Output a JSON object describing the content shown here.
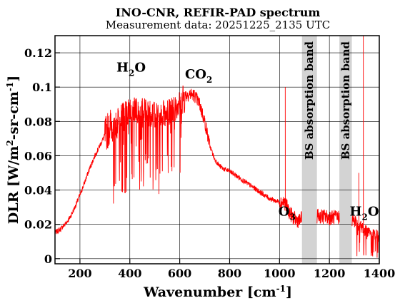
{
  "chart_data": {
    "type": "line",
    "title": "INO-CNR, REFIR-PAD spectrum",
    "subtitle": "Measurement data: 20251225_2135 UTC",
    "xlabel": "Wavenumber [cm-1]",
    "xlabel_base": "Wavenumber [cm",
    "xlabel_sup": "-1",
    "xlabel_close": "]",
    "ylabel": "DLR [W/m2-sr-cm-1]",
    "ylabel_parts": {
      "a": "DLR [W/m",
      "sup1": "2",
      "b": "-sr-cm",
      "sup2": "-1",
      "c": "]"
    },
    "xlim": [
      100,
      1400
    ],
    "ylim": [
      -0.003,
      0.13
    ],
    "x_ticks": [
      200,
      400,
      600,
      800,
      1000,
      1200,
      1400
    ],
    "y_ticks": [
      0,
      0.02,
      0.04,
      0.06,
      0.08,
      0.1,
      0.12
    ],
    "y_tick_labels": [
      "0",
      "0.02",
      "0.04",
      "0.06",
      "0.08",
      "0.1",
      "0.12"
    ],
    "grid": true,
    "line_color": "#ff0000",
    "band_color": "#d3d3d3",
    "series": [
      {
        "x": [
          100,
          120,
          140,
          160,
          180,
          200,
          220,
          240,
          260,
          280,
          300,
          320,
          340,
          360,
          380,
          400,
          420,
          440,
          460,
          480,
          500,
          520,
          540,
          560,
          580,
          600,
          620,
          640,
          660,
          680,
          700,
          720,
          740,
          760,
          780,
          800,
          820,
          840,
          860,
          880,
          900,
          920,
          940,
          960,
          980,
          1000,
          1020,
          1040,
          1060,
          1080,
          1100,
          1150,
          1200,
          1250,
          1300,
          1320,
          1340,
          1360,
          1380,
          1400
        ],
        "y": [
          0.015,
          0.017,
          0.02,
          0.024,
          0.03,
          0.037,
          0.045,
          0.053,
          0.06,
          0.066,
          0.072,
          0.077,
          0.081,
          0.085,
          0.088,
          0.089,
          0.09,
          0.09,
          0.089,
          0.088,
          0.087,
          0.087,
          0.088,
          0.089,
          0.091,
          0.093,
          0.095,
          0.096,
          0.095,
          0.09,
          0.08,
          0.066,
          0.058,
          0.054,
          0.052,
          0.051,
          0.049,
          0.047,
          0.045,
          0.043,
          0.041,
          0.039,
          0.037,
          0.035,
          0.034,
          0.033,
          0.033,
          0.027,
          0.023,
          0.022,
          0.025,
          0.025,
          0.024,
          0.024,
          0.023,
          0.02,
          0.018,
          0.016,
          0.015,
          0.015
        ]
      }
    ],
    "bands": [
      {
        "x0": 1090,
        "x1": 1150,
        "label": "BS absorption band"
      },
      {
        "x0": 1240,
        "x1": 1290,
        "label": "BS absorption band"
      }
    ],
    "annotations": {
      "h2o_left": {
        "base": "H",
        "sub": "2",
        "tail": "O",
        "x": 405,
        "y": 0.109
      },
      "co2": {
        "base": "CO",
        "sub": "2",
        "tail": "",
        "x": 676,
        "y": 0.105
      },
      "o3": {
        "base": "O",
        "sub": "3",
        "tail": "",
        "x": 1030,
        "y": 0.025
      },
      "h2o_right": {
        "base": "H",
        "sub": "2",
        "tail": "O",
        "x": 1340,
        "y": 0.025
      }
    }
  }
}
